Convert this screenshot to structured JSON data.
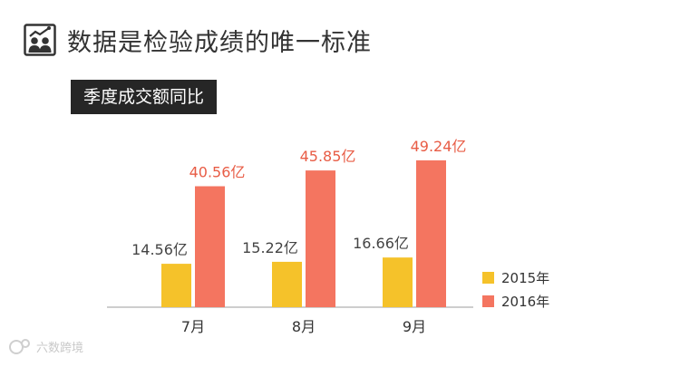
{
  "header": {
    "title": "数据是检验成绩的唯一标准",
    "icon": "people-chart-icon"
  },
  "watermark": {
    "text": "六数跨境",
    "icon": "watermark-logo-icon"
  },
  "chart_data": {
    "type": "bar",
    "title": "季度成交额同比",
    "categories": [
      "7月",
      "8月",
      "9月"
    ],
    "series": [
      {
        "name": "2015年",
        "color": "#f5c22a",
        "values": [
          14.56,
          15.22,
          16.66
        ],
        "labels": [
          "14.56亿",
          "15.22亿",
          "16.66亿"
        ]
      },
      {
        "name": "2016年",
        "color": "#f47560",
        "values": [
          40.56,
          45.85,
          49.24
        ],
        "labels": [
          "40.56亿",
          "45.85亿",
          "49.24亿"
        ]
      }
    ],
    "ylim": [
      0,
      55
    ],
    "grid": false,
    "legend": "right"
  }
}
